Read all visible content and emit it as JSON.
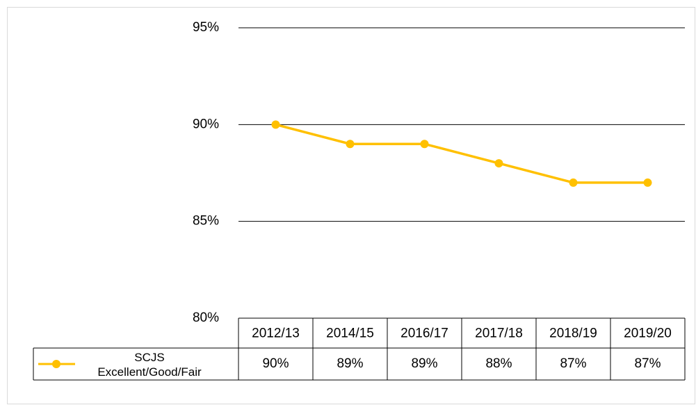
{
  "chart_data": {
    "type": "line",
    "categories": [
      "2012/13",
      "2014/15",
      "2016/17",
      "2017/18",
      "2018/19",
      "2019/20"
    ],
    "series": [
      {
        "name": "SCJS Excellent/Good/Fair",
        "color": "#ffc000",
        "values": [
          90,
          89,
          89,
          88,
          87,
          87
        ],
        "value_labels": [
          "90%",
          "89%",
          "89%",
          "88%",
          "87%",
          "87%"
        ]
      }
    ],
    "ylim": [
      80,
      95
    ],
    "yticks": [
      {
        "value": 80,
        "label": "80%"
      },
      {
        "value": 85,
        "label": "85%"
      },
      {
        "value": 90,
        "label": "90%"
      },
      {
        "value": 95,
        "label": "95%"
      }
    ],
    "grid": true
  }
}
